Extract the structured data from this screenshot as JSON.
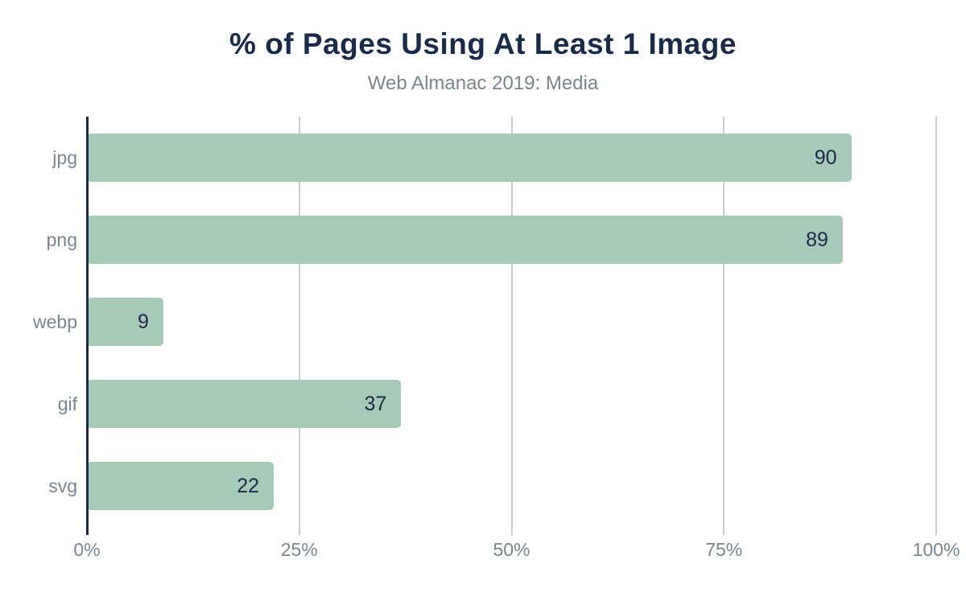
{
  "title": "% of Pages Using At Least 1 Image",
  "subtitle": "Web Almanac 2019: Media",
  "colors": {
    "bar_fill": "#a7c9b8",
    "navy_text": "#1a2b49",
    "label_gray": "#7c868d",
    "gridline": "#cdcdcd",
    "background": "#ffffff"
  },
  "chart_data": {
    "type": "bar",
    "orientation": "horizontal",
    "title": "% of Pages Using At Least 1 Image",
    "subtitle": "Web Almanac 2019: Media",
    "categories": [
      "jpg",
      "png",
      "webp",
      "gif",
      "svg"
    ],
    "values": [
      90,
      89,
      9,
      37,
      22
    ],
    "value_labels": [
      "90",
      "89",
      "9",
      "37",
      "22"
    ],
    "xlim": [
      0,
      100
    ],
    "x_tick_values": [
      0,
      25,
      50,
      75,
      100
    ],
    "x_tick_labels": [
      "0%",
      "25%",
      "50%",
      "75%",
      "100%"
    ],
    "xlabel": "",
    "ylabel": "",
    "grid": "vertical",
    "legend": "none",
    "value_label_position": "inside-end"
  }
}
